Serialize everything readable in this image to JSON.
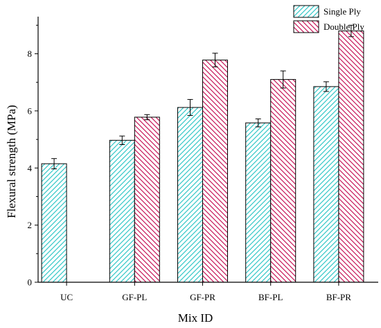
{
  "chart_data": {
    "type": "bar",
    "title": "",
    "xlabel": "Mix ID",
    "ylabel": "Flexural strength (MPa)",
    "ylim": [
      0,
      9.3
    ],
    "yticks": [
      0,
      2,
      4,
      6,
      8
    ],
    "categories": [
      "UC",
      "GF-PL",
      "GF-PR",
      "BF-PL",
      "BF-PR"
    ],
    "series": [
      {
        "name": "Single Ply",
        "color": "#35c8c8",
        "pattern": "diagonal-hatch-up",
        "values": [
          4.15,
          4.97,
          6.12,
          5.58,
          6.85
        ],
        "errors": [
          0.18,
          0.15,
          0.28,
          0.14,
          0.17
        ]
      },
      {
        "name": "Double Ply",
        "color": "#c8185a",
        "pattern": "diagonal-hatch-down",
        "values": [
          null,
          5.78,
          7.78,
          7.1,
          8.8
        ],
        "errors": [
          null,
          0.09,
          0.24,
          0.3,
          0.2
        ]
      }
    ],
    "legend_position": "top-right",
    "grid": false
  }
}
